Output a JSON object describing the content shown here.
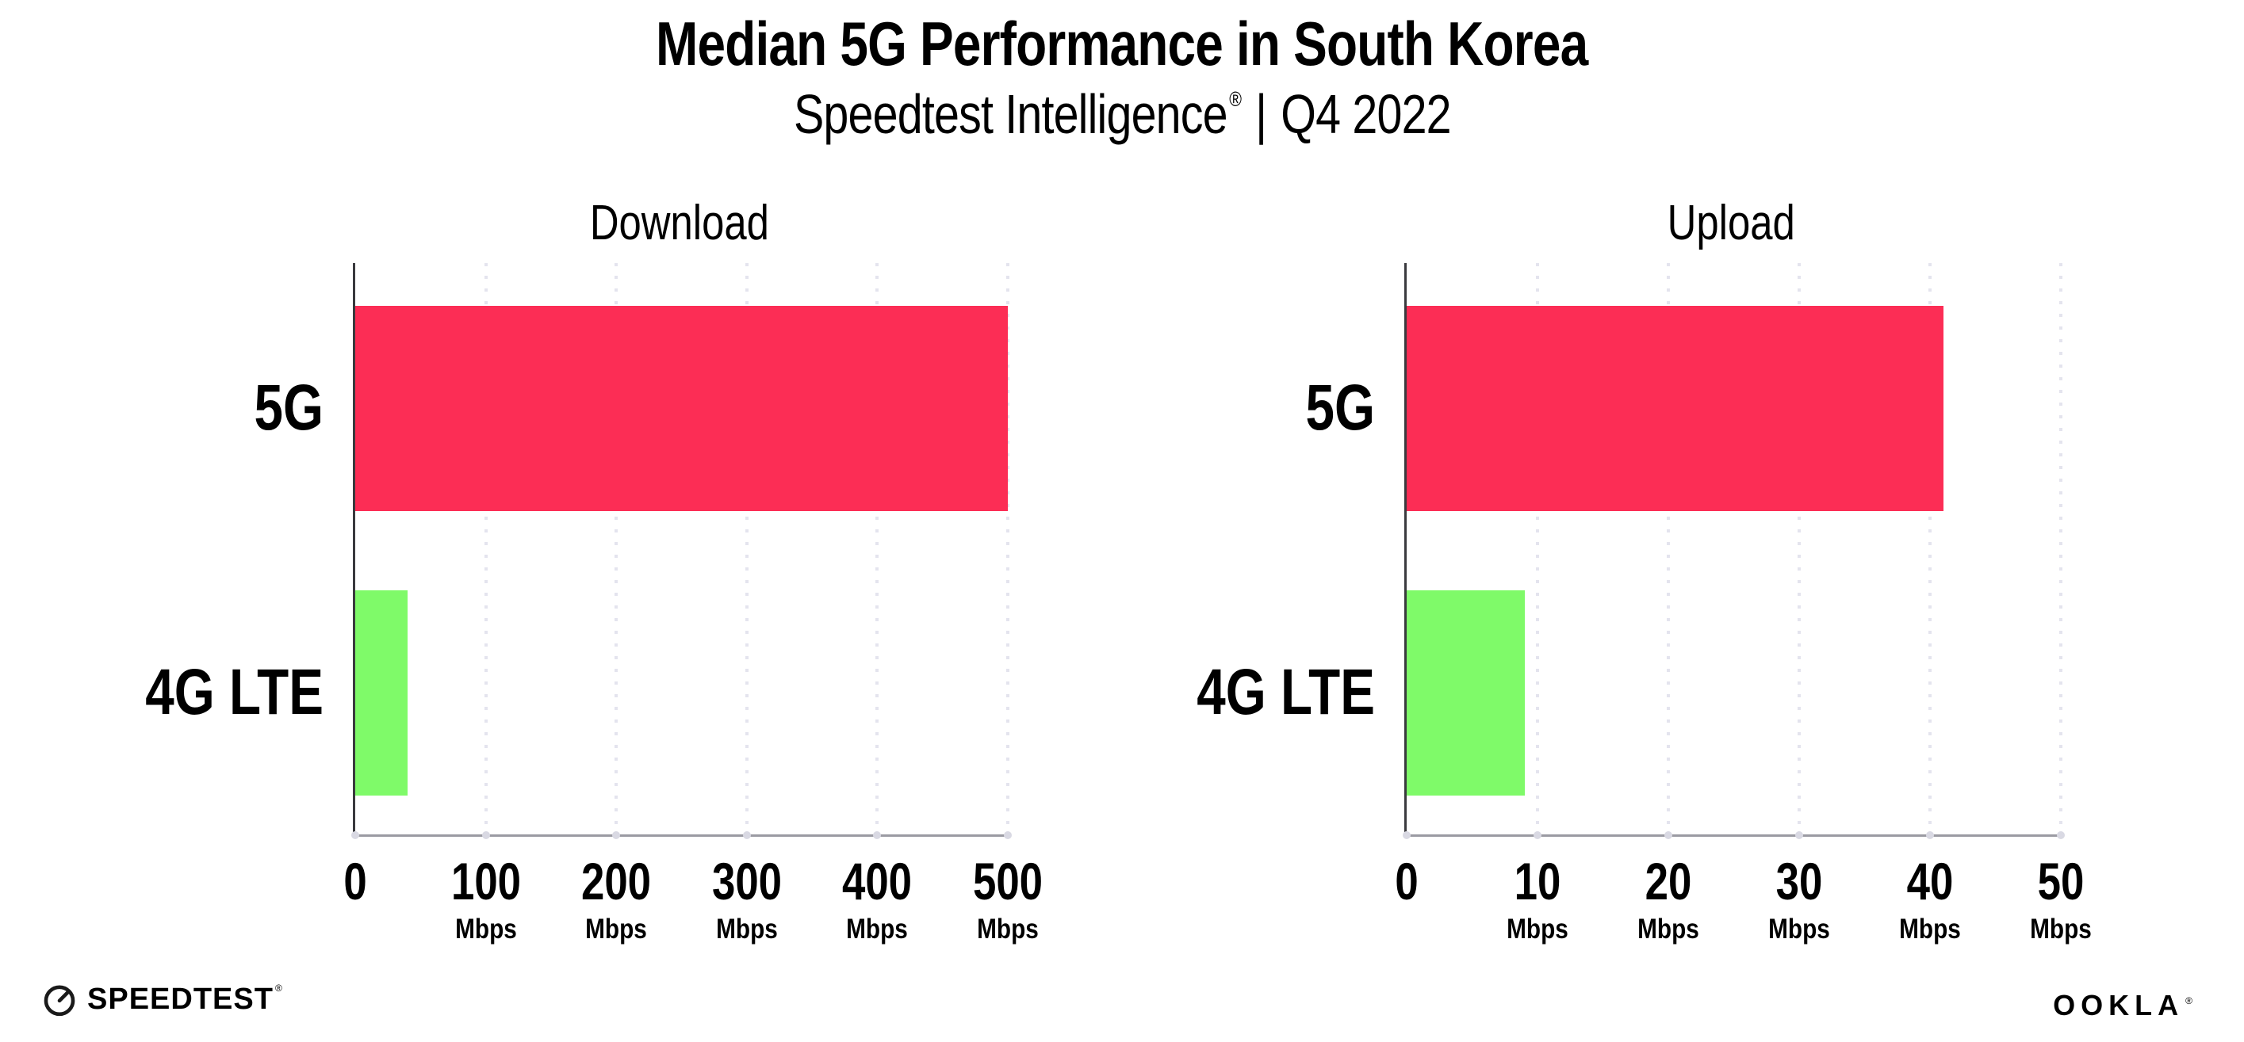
{
  "header": {
    "title": "Median 5G Performance in South Korea",
    "subtitle_brand": "Speedtest Intelligence",
    "subtitle_reg": "®",
    "subtitle_divider": "|",
    "subtitle_period": "Q4 2022"
  },
  "colors": {
    "bar_5g": "#FC2D55",
    "bar_4g_lte": "#7FFA69",
    "gridline": "#E4E4EE",
    "x_axis": "#9A9AA2",
    "y_axis": "#3A3A3E",
    "text": "#000000"
  },
  "chart_data": [
    {
      "type": "bar",
      "orientation": "horizontal",
      "title": "Download",
      "categories": [
        "5G",
        "4G LTE"
      ],
      "values": [
        500,
        40
      ],
      "unit": "Mbps",
      "xlim": [
        0,
        500
      ],
      "xticks": [
        0,
        100,
        200,
        300,
        400,
        500
      ],
      "bar_colors": [
        "#FC2D55",
        "#7FFA69"
      ],
      "grid": "vertical-dotted",
      "legend": "none"
    },
    {
      "type": "bar",
      "orientation": "horizontal",
      "title": "Upload",
      "categories": [
        "5G",
        "4G LTE"
      ],
      "values": [
        41,
        9
      ],
      "unit": "Mbps",
      "xlim": [
        0,
        50
      ],
      "xticks": [
        0,
        10,
        20,
        30,
        40,
        50
      ],
      "bar_colors": [
        "#FC2D55",
        "#7FFA69"
      ],
      "grid": "vertical-dotted",
      "legend": "none"
    }
  ],
  "footer": {
    "speedtest_wordmark": "SPEEDTEST",
    "speedtest_reg": "®",
    "ookla_wordmark": "OOKLA",
    "ookla_reg": "®"
  }
}
